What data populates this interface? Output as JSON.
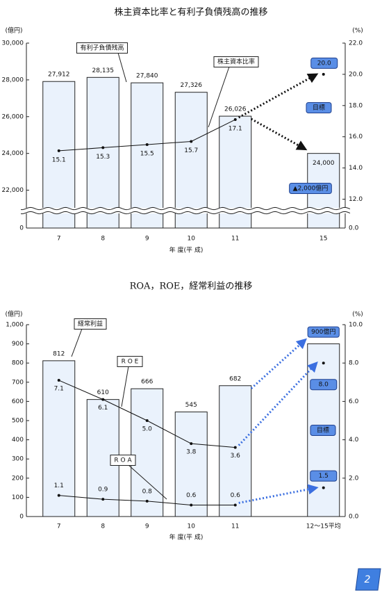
{
  "chart_data": [
    {
      "type": "bar",
      "title": "株主資本比率と有利子負債残高の推移",
      "y_label": "(億円)",
      "y2_label": "(%)",
      "x_label": "年 度(平 成)",
      "categories": [
        "7",
        "8",
        "9",
        "10",
        "11",
        null,
        "15"
      ],
      "series": [
        {
          "name": "有利子負債残高",
          "type": "bar",
          "color": "#eaf2fc",
          "boxed": false,
          "values": [
            27912,
            28135,
            27840,
            27326,
            26026,
            null,
            24000
          ],
          "value_labels": [
            "27,912",
            "28,135",
            "27,840",
            "27,326",
            "26,026",
            null,
            "24,000"
          ]
        },
        {
          "name": "株主資本比率",
          "type": "line",
          "axis": "y2",
          "color": "#111111",
          "boxed": true,
          "values": [
            15.1,
            15.3,
            15.5,
            15.7,
            17.1,
            null,
            20.0
          ],
          "value_labels": [
            "15.1",
            "15.3",
            "15.5",
            "15.7",
            "17.1",
            null,
            "20.0"
          ]
        }
      ],
      "ylim": [
        21000,
        30000
      ],
      "yticks": [
        0,
        {
          "value": 22000,
          "label": "22,000"
        },
        {
          "value": 24000,
          "label": "24,000"
        },
        {
          "value": 26000,
          "label": "26,000"
        },
        {
          "value": 28000,
          "label": "28,000"
        },
        {
          "value": 30000,
          "label": "30,000"
        }
      ],
      "y2lim": [
        11.4,
        22
      ],
      "y2ticks": [
        {
          "value": 0,
          "label": "0.0"
        },
        {
          "value": 12,
          "label": "12.0"
        },
        {
          "value": 14,
          "label": "14.0"
        },
        {
          "value": 16,
          "label": "16.0"
        },
        {
          "value": 18,
          "label": "18.0"
        },
        {
          "value": 20,
          "label": "20.0"
        },
        {
          "value": 22,
          "label": "22.0"
        }
      ],
      "axis_break": true,
      "projection_color": "#111111",
      "annotations": [
        "目標",
        "▲2,000億円"
      ]
    },
    {
      "type": "bar",
      "title": "ROA，ROE，経常利益の推移",
      "y_label": "(億円)",
      "y2_label": "(%)",
      "x_label": "年 度(平 成)",
      "categories": [
        "7",
        "8",
        "9",
        "10",
        "11",
        null,
        "12～15平均"
      ],
      "series": [
        {
          "name": "経常利益",
          "type": "bar",
          "color": "#eaf2fc",
          "boxed": true,
          "values": [
            812,
            610,
            666,
            545,
            682,
            null,
            900
          ],
          "value_labels": [
            "812",
            "610",
            "666",
            "545",
            "682",
            null,
            "900億円"
          ]
        },
        {
          "name": "R O E",
          "type": "line",
          "axis": "y2",
          "color": "#111111",
          "boxed": true,
          "values": [
            7.1,
            6.1,
            5.0,
            3.8,
            3.6,
            null,
            8.0
          ],
          "value_labels": [
            "7.1",
            "6.1",
            "5.0",
            "3.8",
            "3.6",
            null,
            "8.0"
          ]
        },
        {
          "name": "R O A",
          "type": "line",
          "axis": "y2",
          "color": "#111111",
          "boxed": true,
          "values": [
            1.1,
            0.9,
            0.8,
            0.6,
            0.6,
            null,
            1.5
          ],
          "value_labels": [
            "1.1",
            "0.9",
            "0.8",
            "0.6",
            "0.6",
            null,
            "1.5"
          ]
        }
      ],
      "ylim": [
        0,
        1000
      ],
      "yticks": [
        0,
        100,
        200,
        300,
        400,
        500,
        600,
        700,
        800,
        900,
        {
          "value": 1000,
          "label": "1,000"
        }
      ],
      "y2lim": [
        0,
        10
      ],
      "y2ticks": [
        {
          "value": 0,
          "label": "0.0"
        },
        {
          "value": 2,
          "label": "2.0"
        },
        {
          "value": 4,
          "label": "4.0"
        },
        {
          "value": 6,
          "label": "6.0"
        },
        {
          "value": 8,
          "label": "8.0"
        },
        {
          "value": 10,
          "label": "10.0"
        }
      ],
      "axis_break": false,
      "projection_color": "#3b6fe0",
      "annotations": [
        "目標"
      ]
    }
  ],
  "page_number": "2"
}
